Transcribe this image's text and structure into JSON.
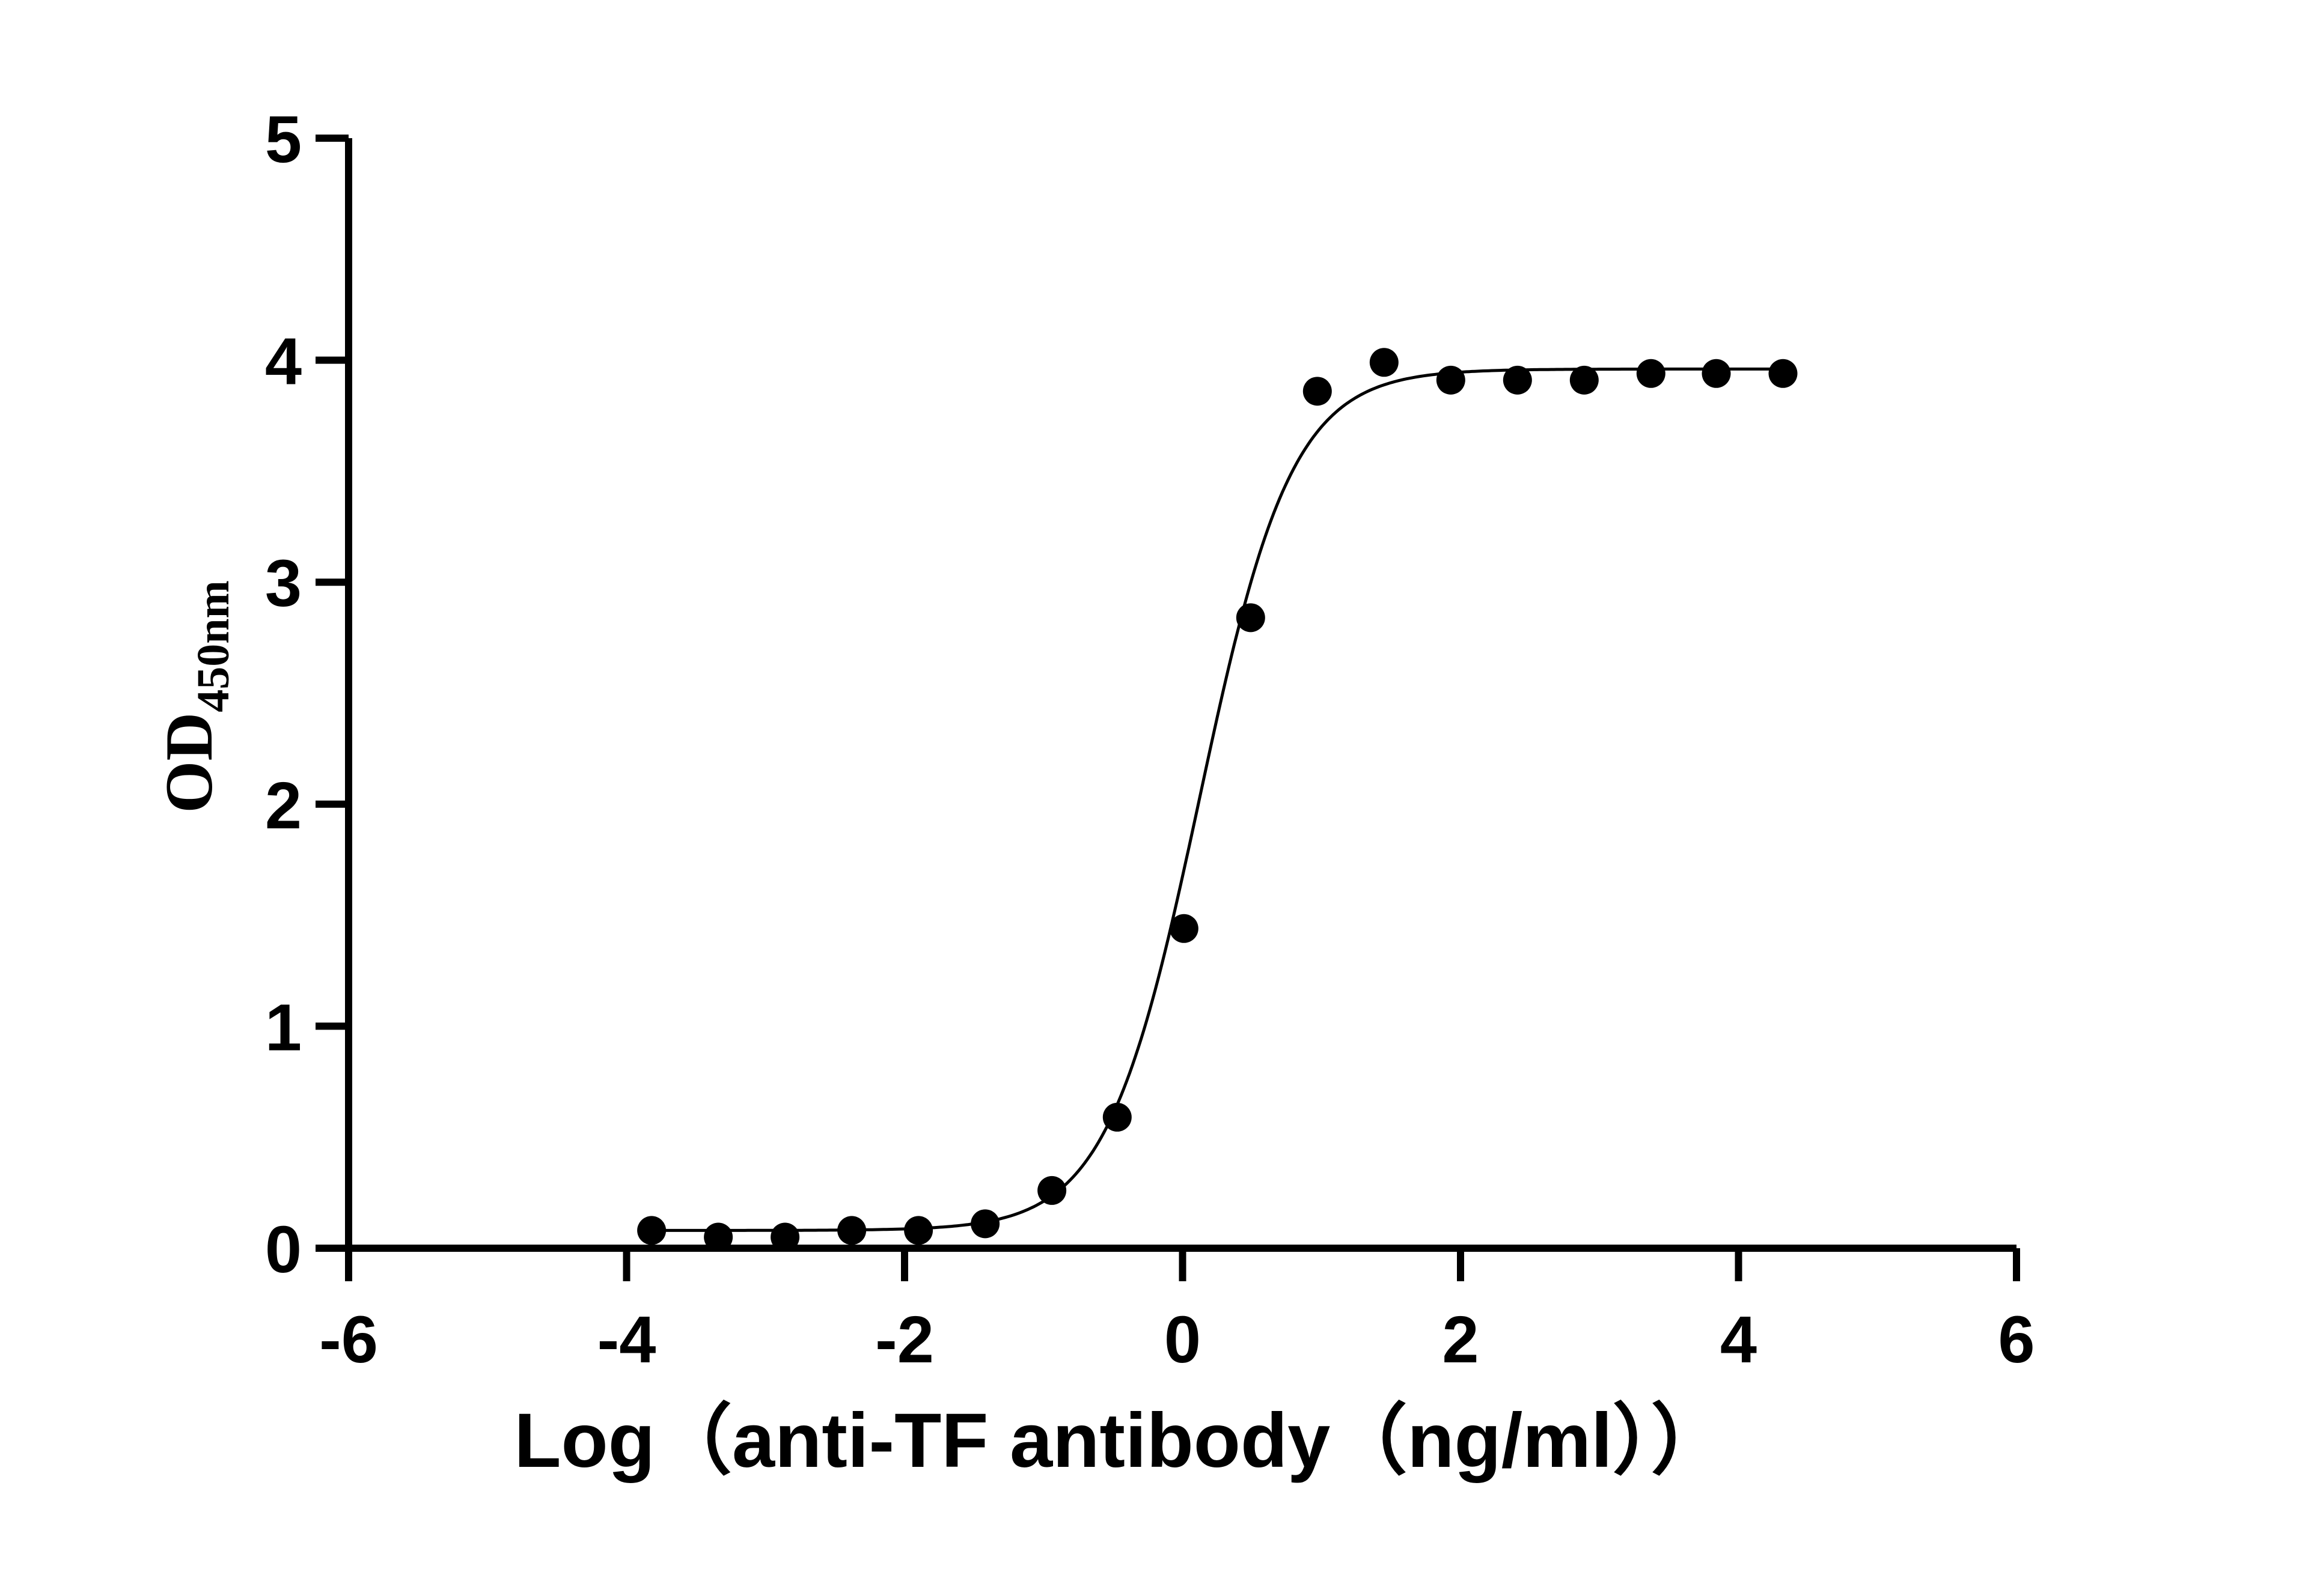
{
  "chart_data": {
    "type": "scatter",
    "xlabel": "Log（anti-TF antibody（ng/ml））",
    "ylabel": "OD",
    "ylabel_subscript": "450nm",
    "xlim": [
      -6,
      6
    ],
    "ylim": [
      0,
      5
    ],
    "x_ticks": [
      -6,
      -4,
      -2,
      0,
      2,
      4,
      6
    ],
    "y_ticks": [
      0,
      1,
      2,
      3,
      4,
      5
    ],
    "x_tick_labels": [
      "-6",
      "-4",
      "-2",
      "0",
      "2",
      "4",
      "6"
    ],
    "y_tick_labels": [
      "0",
      "1",
      "2",
      "3",
      "4",
      "5"
    ],
    "grid": false,
    "series": [
      {
        "x": [
          -3.82,
          -3.34,
          -2.86,
          -2.38,
          -1.9,
          -1.42,
          -0.94,
          -0.47,
          0.01,
          0.49,
          0.97,
          1.45,
          1.93,
          2.41,
          2.89,
          3.37,
          3.84,
          4.32
        ],
        "y": [
          0.08,
          0.05,
          0.05,
          0.08,
          0.08,
          0.11,
          0.26,
          0.59,
          1.44,
          2.84,
          3.86,
          3.99,
          3.91,
          3.91,
          3.91,
          3.94,
          3.94,
          3.94
        ]
      }
    ],
    "fit_curve": {
      "model": "4PL",
      "bottom": 0.08,
      "top": 3.96,
      "log_ec50": 0.12,
      "hill_slope": 1.3,
      "x_range": [
        -3.82,
        4.32
      ]
    }
  }
}
